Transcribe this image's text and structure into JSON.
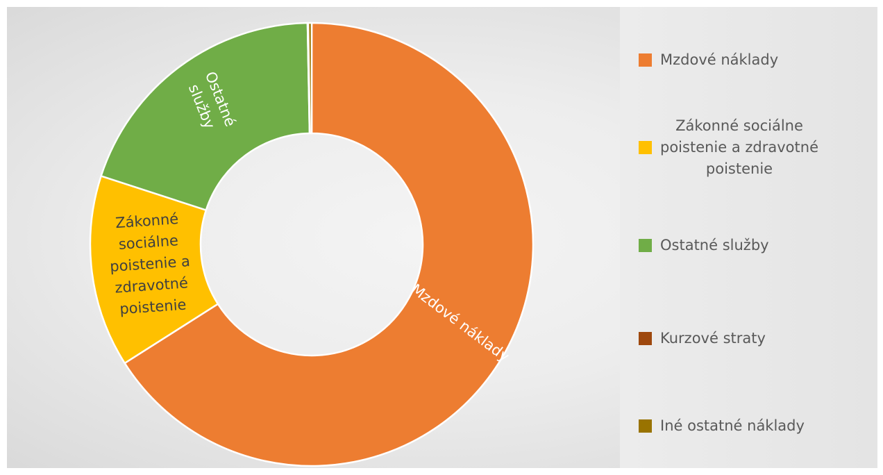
{
  "chart_data": {
    "type": "pie",
    "variant": "doughnut",
    "title": "",
    "slices": [
      {
        "label": "Mzdové náklady",
        "value": 0.66,
        "color": "#ED7D31",
        "data_label": "Mzdové náklady",
        "label_color": "#ffffff"
      },
      {
        "label": "Zákonné sociálne poistenie a zdravotné poistenie",
        "value": 0.14,
        "color": "#FFC000",
        "data_label": "Zákonné\nsociálne\npoistenie a\nzdravotné\npoistenie",
        "label_color": "#404040"
      },
      {
        "label": "Ostatné služby",
        "value": 0.197,
        "color": "#70AD47",
        "data_label": "Ostatné\nslužby",
        "label_color": "#ffffff"
      },
      {
        "label": "Kurzové straty",
        "value": 0.0005,
        "color": "#9E480E",
        "data_label": "",
        "label_color": "#ffffff"
      },
      {
        "label": "Iné ostatné náklady",
        "value": 0.0025,
        "color": "#997300",
        "data_label": "",
        "label_color": "#ffffff"
      }
    ],
    "legend": {
      "position": "right",
      "entries": [
        {
          "text": "Mzdové náklady",
          "display": "Mzdové náklady",
          "color": "#ED7D31"
        },
        {
          "text": "Zákonné sociálne poistenie a zdravotné poistenie",
          "display": "Zákonné sociálne\npoistenie a zdravotné\npoistenie",
          "color": "#FFC000"
        },
        {
          "text": "Ostatné služby",
          "display": "Ostatné služby",
          "color": "#70AD47"
        },
        {
          "text": "Kurzové straty",
          "display": "Kurzové straty",
          "color": "#9E480E"
        },
        {
          "text": "Iné ostatné náklady",
          "display": "Iné ostatné náklady",
          "color": "#997300"
        }
      ]
    }
  }
}
